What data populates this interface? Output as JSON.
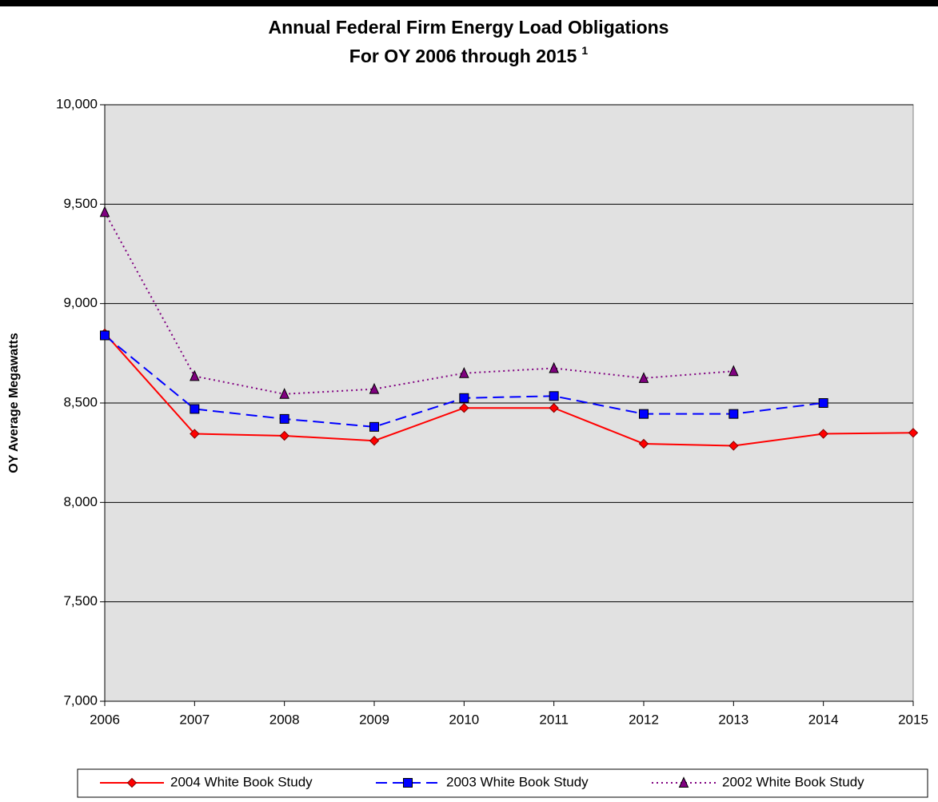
{
  "chart_data": {
    "type": "line",
    "title": "Annual Federal Firm Energy Load Obligations",
    "subtitle": "For OY 2006 through 2015",
    "subtitle_note": "1",
    "y_label": "OY Average Megawatts",
    "categories": [
      "2006",
      "2007",
      "2008",
      "2009",
      "2010",
      "2011",
      "2012",
      "2013",
      "2014",
      "2015"
    ],
    "series": [
      {
        "name": "2004 White Book Study",
        "color": "#ff0000",
        "dash": "solid",
        "marker": "diamond",
        "values": [
          8850,
          8345,
          8335,
          8310,
          8475,
          8475,
          8295,
          8285,
          8345,
          8350
        ]
      },
      {
        "name": "2003 White Book Study",
        "color": "#0000ff",
        "dash": "dashed",
        "marker": "square",
        "values": [
          8840,
          8470,
          8420,
          8380,
          8525,
          8535,
          8445,
          8445,
          8500,
          null
        ]
      },
      {
        "name": "2002 White Book Study",
        "color": "#800080",
        "dash": "dotted",
        "marker": "triangle",
        "values": [
          9460,
          8635,
          8545,
          8570,
          8650,
          8675,
          8625,
          8660,
          null,
          null
        ]
      }
    ],
    "ylim": [
      7000,
      10000
    ],
    "yticks": [
      {
        "value": 7000,
        "label": "7,000"
      },
      {
        "value": 7500,
        "label": "7,500"
      },
      {
        "value": 8000,
        "label": "8,000"
      },
      {
        "value": 8500,
        "label": "8,500"
      },
      {
        "value": 9000,
        "label": "9,000"
      },
      {
        "value": 9500,
        "label": "9,500"
      },
      {
        "value": 10000,
        "label": "10,000"
      }
    ],
    "grid": true,
    "legend": "bottom"
  }
}
